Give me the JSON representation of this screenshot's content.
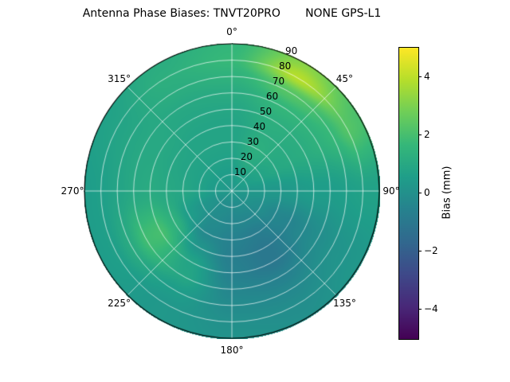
{
  "chart_data": {
    "type": "heatmap",
    "projection": "polar",
    "title": "Antenna Phase Biases: TNVT20PRO       NONE GPS-L1",
    "colorbar_label": "Bias (mm)",
    "colormap": "viridis",
    "colormap_stops": [
      "#440154",
      "#482878",
      "#3e4989",
      "#31688e",
      "#26828e",
      "#1f9e89",
      "#35b779",
      "#6ece58",
      "#b5de2b",
      "#fde725"
    ],
    "clim": [
      -5,
      5
    ],
    "colorbar_tick_values": [
      4,
      2,
      0,
      -2,
      -4
    ],
    "colorbar_tick_labels": [
      "4",
      "2",
      "0",
      "−2",
      "−4"
    ],
    "angular_tick_angles_deg": [
      0,
      45,
      90,
      135,
      180,
      225,
      270,
      315
    ],
    "angular_tick_labels": [
      "0°",
      "45°",
      "90°",
      "135°",
      "180°",
      "225°",
      "270°",
      "315°"
    ],
    "radial_tick_values": [
      10,
      20,
      30,
      40,
      50,
      60,
      70,
      80,
      90
    ],
    "radial_tick_labels": [
      "10",
      "20",
      "30",
      "40",
      "50",
      "60",
      "70",
      "80",
      "90"
    ],
    "radial_label_angle_deg": 23,
    "radial_range": [
      0,
      90
    ],
    "grid": true,
    "azimuth_grid_deg": [
      0,
      30,
      60,
      90,
      120,
      150,
      180,
      210,
      240,
      270,
      300,
      330,
      360
    ],
    "radius_grid_deg": [
      0,
      10,
      20,
      30,
      40,
      50,
      60,
      70,
      80,
      90
    ],
    "values_mm_by_radius_row": [
      [
        0.3,
        0.3,
        0.3,
        0.3,
        0.3,
        0.3,
        0.3,
        0.3,
        0.3,
        0.3,
        0.3,
        0.3,
        0.3
      ],
      [
        0.5,
        0.7,
        0.6,
        0.3,
        0.1,
        -0.1,
        -0.2,
        -0.1,
        0.1,
        0.4,
        0.5,
        0.5,
        0.5
      ],
      [
        0.7,
        1.1,
        0.8,
        0.3,
        -0.1,
        -0.4,
        -0.4,
        -0.2,
        0.2,
        0.7,
        0.7,
        0.7,
        0.7
      ],
      [
        0.8,
        1.3,
        1.0,
        0.3,
        -0.4,
        -0.8,
        -0.6,
        -0.3,
        0.5,
        0.9,
        0.8,
        0.8,
        0.8
      ],
      [
        0.8,
        1.2,
        1.1,
        0.4,
        -0.5,
        -1.0,
        -0.7,
        0.2,
        1.4,
        1.0,
        0.9,
        0.8,
        0.8
      ],
      [
        0.9,
        1.3,
        1.2,
        0.5,
        -0.3,
        -1.0,
        -0.6,
        0.8,
        2.0,
        1.1,
        1.0,
        0.9,
        0.9
      ],
      [
        1.1,
        1.6,
        1.4,
        0.5,
        -0.1,
        -0.6,
        -0.4,
        0.9,
        1.9,
        1.0,
        1.0,
        1.0,
        1.1
      ],
      [
        1.4,
        2.3,
        1.7,
        0.6,
        0.1,
        -0.3,
        -0.2,
        0.5,
        1.1,
        0.8,
        0.9,
        1.2,
        1.4
      ],
      [
        1.7,
        3.9,
        2.3,
        0.7,
        0.2,
        -0.1,
        0.0,
        0.3,
        0.6,
        0.6,
        0.8,
        1.3,
        1.7
      ],
      [
        1.6,
        3.2,
        2.1,
        0.7,
        0.3,
        0.0,
        0.1,
        0.3,
        0.5,
        0.5,
        0.7,
        1.2,
        1.6
      ]
    ]
  }
}
